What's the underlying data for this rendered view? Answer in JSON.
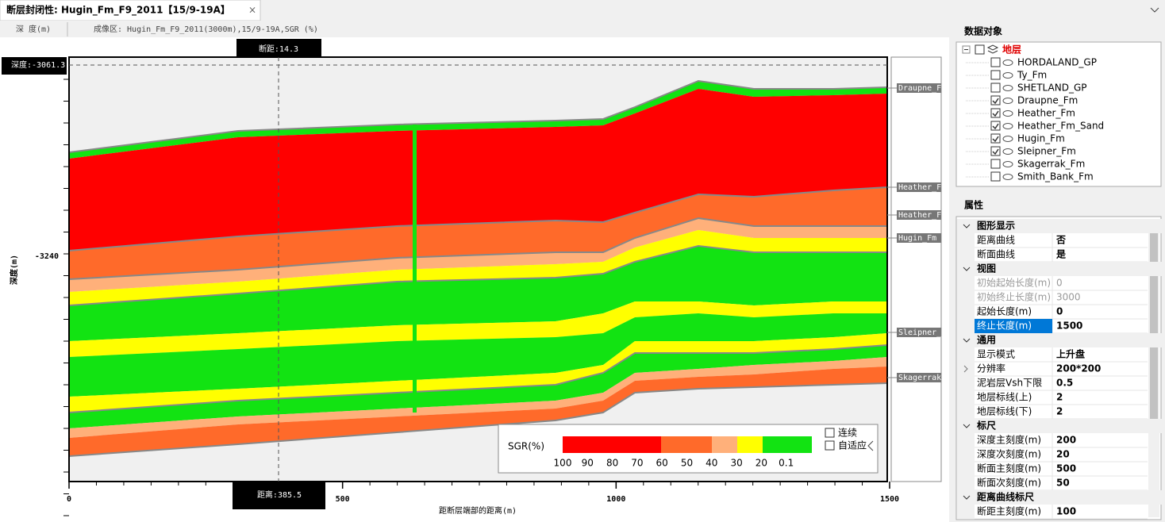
{
  "tab": {
    "title": "断层封闭性: Hugin_Fm_F9_2011【15/9-19A】"
  },
  "header": {
    "depth_column": "深 度(m)",
    "imaging_area": "成像区: Hugin_Fm_F9_2011(3000m),15/9-19A,SGR (%)"
  },
  "section": {
    "throw_label": "断距:14.3",
    "depth_label": "深度:-3061.3",
    "distance_label": "距离:385.5",
    "y_axis_title": "深度(m)",
    "y_tick": "-3240",
    "x_axis_title": "距断层端部的距离(m)",
    "xlim": [
      0,
      1500
    ],
    "xticks": [
      0,
      500,
      1000,
      1500
    ],
    "horizon_labels": [
      "Draupne_F",
      "Heather_F",
      "Heather_F",
      "Hugin_Fm",
      "Sleipner_",
      "Skagerrak"
    ]
  },
  "legend": {
    "title": "SGR(%)",
    "scale_labels": [
      "100",
      "90",
      "80",
      "70",
      "60",
      "50",
      "40",
      "30",
      "20",
      "0.1"
    ],
    "options": [
      {
        "label": "连续",
        "checked": false
      },
      {
        "label": "自适应",
        "checked": false
      }
    ]
  },
  "data_objects": {
    "title": "数据对象",
    "root": {
      "label": "地层",
      "checked": false
    },
    "items": [
      {
        "label": "HORDALAND_GP",
        "checked": false
      },
      {
        "label": "Ty_Fm",
        "checked": false
      },
      {
        "label": "SHETLAND_GP",
        "checked": false
      },
      {
        "label": "Draupne_Fm",
        "checked": true
      },
      {
        "label": "Heather_Fm",
        "checked": true
      },
      {
        "label": "Heather_Fm_Sand",
        "checked": true
      },
      {
        "label": "Hugin_Fm",
        "checked": true
      },
      {
        "label": "Sleipner_Fm",
        "checked": true
      },
      {
        "label": "Skagerrak_Fm",
        "checked": false
      },
      {
        "label": "Smith_Bank_Fm",
        "checked": false
      }
    ]
  },
  "properties": {
    "title": "属性",
    "groups": [
      {
        "title": "图形显示",
        "rows": [
          {
            "label": "距离曲线",
            "value": "否"
          },
          {
            "label": "断面曲线",
            "value": "是"
          }
        ]
      },
      {
        "title": "视图",
        "rows": [
          {
            "label": "初始起始长度(m)",
            "value": "0",
            "disabled": true
          },
          {
            "label": "初始终止长度(m)",
            "value": "3000",
            "disabled": true
          },
          {
            "label": "起始长度(m)",
            "value": "0"
          },
          {
            "label": "终止长度(m)",
            "value": "1500",
            "selected": true
          }
        ]
      },
      {
        "title": "通用",
        "rows": [
          {
            "label": "显示模式",
            "value": "上升盘"
          },
          {
            "label": "分辨率",
            "value": "200*200",
            "expandable": true
          },
          {
            "label": "泥岩层Vsh下限",
            "value": "0.5"
          },
          {
            "label": "地层标线(上)",
            "value": "2"
          },
          {
            "label": "地层标线(下)",
            "value": "2"
          }
        ]
      },
      {
        "title": "标尺",
        "rows": [
          {
            "label": "深度主刻度(m)",
            "value": "200"
          },
          {
            "label": "深度次刻度(m)",
            "value": "20"
          },
          {
            "label": "断面主刻度(m)",
            "value": "500"
          },
          {
            "label": "断面次刻度(m)",
            "value": "50"
          }
        ]
      },
      {
        "title": "距离曲线标尺",
        "rows": [
          {
            "label": "断距主刻度(m)",
            "value": "100"
          }
        ]
      }
    ]
  }
}
